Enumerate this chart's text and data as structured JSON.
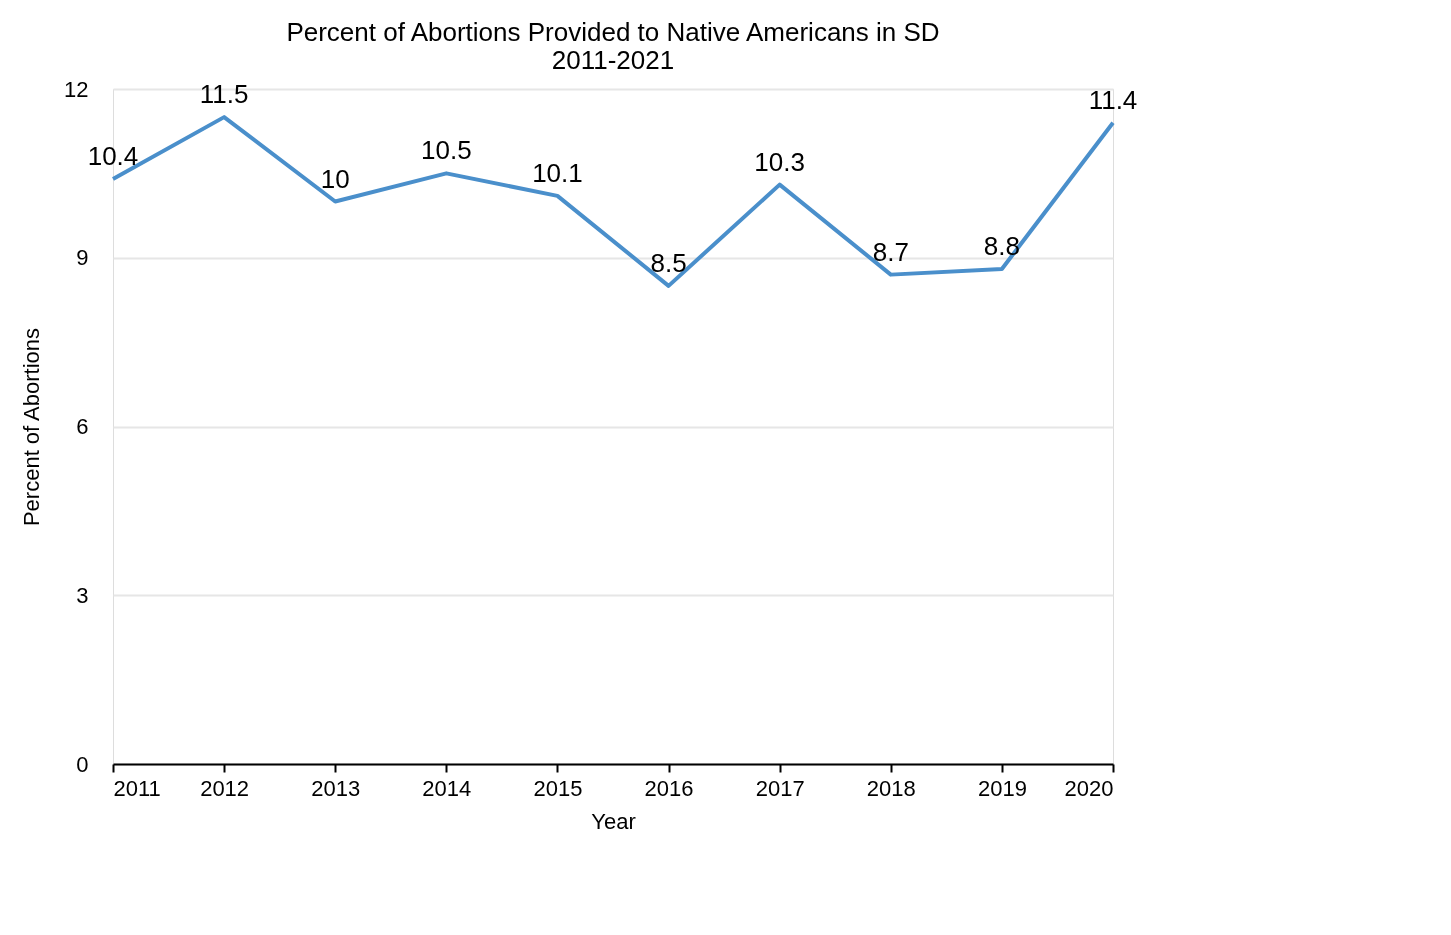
{
  "chart_data": {
    "type": "line",
    "title": "Percent of Abortions Provided to Native Americans in SD\n2011-2021",
    "xlabel": "Year",
    "ylabel": "Percent of Abortions",
    "categories": [
      "2011",
      "2012",
      "2013",
      "2014",
      "2015",
      "2016",
      "2017",
      "2018",
      "2019",
      "2020"
    ],
    "series": [
      {
        "color": "#4a8fcb",
        "values": [
          10.4,
          11.5,
          10,
          10.5,
          10.1,
          8.5,
          10.3,
          8.7,
          8.8,
          11.4
        ]
      }
    ],
    "ylim": [
      0,
      12
    ],
    "yticks": [
      0,
      3,
      6,
      9,
      12
    ],
    "grid": "y",
    "legend": false,
    "marker": "none",
    "line_style": "solid",
    "data_labels": true
  }
}
